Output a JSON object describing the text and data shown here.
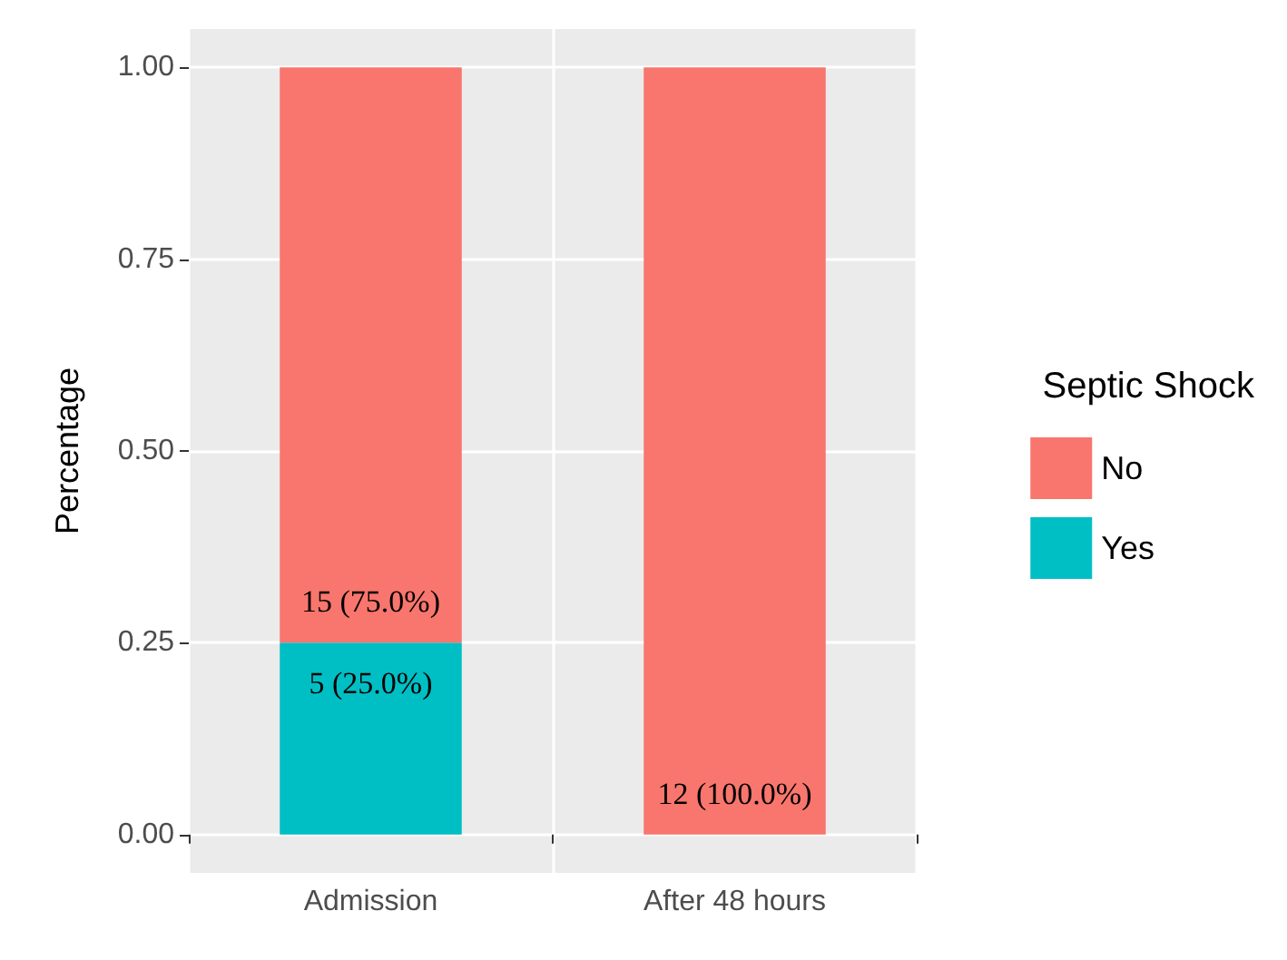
{
  "chart_data": {
    "type": "bar",
    "stacked": true,
    "ylabel": "Percentage",
    "legend_title": "Septic Shock",
    "legend": "right",
    "grid": true,
    "categories": [
      "Admission",
      "After 48 hours"
    ],
    "series": [
      {
        "name": "Yes",
        "color": "#00bfc4",
        "values": [
          0.25,
          0
        ],
        "value_labels": [
          "5 (25.0%)",
          null
        ]
      },
      {
        "name": "No",
        "color": "#f8766d",
        "values": [
          0.75,
          1.0
        ],
        "value_labels": [
          "15 (75.0%)",
          "12 (100.0%)"
        ]
      }
    ],
    "ylim": [
      -0.05,
      1.05
    ],
    "yticks": [
      {
        "value": 0,
        "label": "0.00"
      },
      {
        "value": 0.25,
        "label": "0.25"
      },
      {
        "value": 0.5,
        "label": "0.50"
      },
      {
        "value": 0.75,
        "label": "0.75"
      },
      {
        "value": 1,
        "label": "1.00"
      }
    ]
  }
}
